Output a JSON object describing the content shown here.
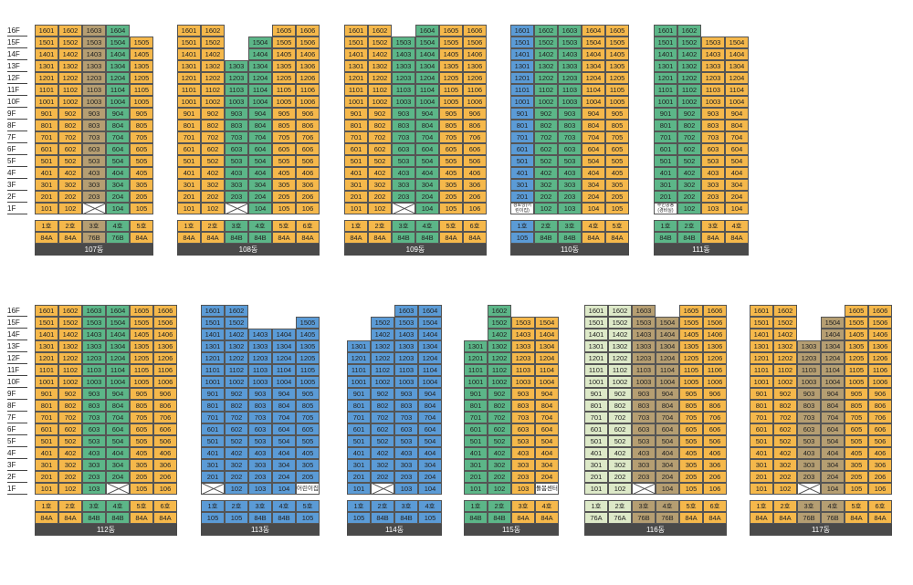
{
  "colors": {
    "orange": "#f5b84b",
    "green": "#5cb688",
    "blue": "#5b9bd6",
    "tan": "#b59e72",
    "lightgreen": "#dde9c8",
    "bar": "#4a4a4a"
  },
  "floor_labels": [
    "16F",
    "15F",
    "14F",
    "13F",
    "12F",
    "11F",
    "10F",
    "9F",
    "8F",
    "7F",
    "6F",
    "5F",
    "4F",
    "3F",
    "2F",
    "1F"
  ],
  "buildings": [
    {
      "name": "107동",
      "ho_labels": [
        "1호",
        "2호",
        "3호",
        "4호",
        "5호"
      ],
      "ho_colors": [
        "orange",
        "orange",
        "tan",
        "green",
        "orange"
      ],
      "types": [
        "84A",
        "84A",
        "76B",
        "76B",
        "84A"
      ],
      "type_colors": [
        "orange",
        "orange",
        "tan",
        "green",
        "orange"
      ],
      "top": [
        16,
        16,
        16,
        16,
        15
      ],
      "first": [
        1,
        1,
        0,
        1,
        1
      ],
      "special": {}
    },
    {
      "name": "108동",
      "ho_labels": [
        "1호",
        "2호",
        "3호",
        "4호",
        "5호",
        "6호"
      ],
      "ho_colors": [
        "orange",
        "orange",
        "green",
        "green",
        "orange",
        "orange"
      ],
      "types": [
        "84A",
        "84A",
        "84B",
        "84B",
        "84A",
        "84A"
      ],
      "type_colors": [
        "orange",
        "orange",
        "green",
        "green",
        "orange",
        "orange"
      ],
      "top": [
        16,
        16,
        13,
        15,
        16,
        16
      ],
      "first": [
        1,
        1,
        0,
        1,
        1,
        1
      ],
      "special": {}
    },
    {
      "name": "109동",
      "ho_labels": [
        "1호",
        "2호",
        "3호",
        "4호",
        "5호",
        "6호"
      ],
      "ho_colors": [
        "orange",
        "orange",
        "green",
        "green",
        "orange",
        "orange"
      ],
      "types": [
        "84A",
        "84A",
        "84B",
        "84B",
        "84A",
        "84A"
      ],
      "type_colors": [
        "orange",
        "orange",
        "green",
        "green",
        "orange",
        "orange"
      ],
      "top": [
        16,
        16,
        15,
        16,
        16,
        16
      ],
      "first": [
        1,
        1,
        0,
        1,
        1,
        1
      ],
      "special": {}
    },
    {
      "name": "110동",
      "ho_labels": [
        "1호",
        "2호",
        "3호",
        "4호",
        "5호"
      ],
      "ho_colors": [
        "blue",
        "green",
        "green",
        "orange",
        "orange"
      ],
      "types": [
        "105",
        "84B",
        "84B",
        "84A",
        "84A"
      ],
      "type_colors": [
        "blue",
        "green",
        "green",
        "orange",
        "orange"
      ],
      "top": [
        16,
        16,
        16,
        16,
        16
      ],
      "first": [
        2,
        1,
        1,
        1,
        1
      ],
      "special": {
        "0": "경로당(어린이집)"
      }
    },
    {
      "name": "111동",
      "ho_labels": [
        "1호",
        "2호",
        "3호",
        "4호"
      ],
      "ho_colors": [
        "green",
        "green",
        "orange",
        "orange"
      ],
      "types": [
        "84B",
        "84B",
        "84A",
        "84A"
      ],
      "type_colors": [
        "green",
        "green",
        "orange",
        "orange"
      ],
      "top": [
        16,
        16,
        15,
        15
      ],
      "first": [
        2,
        1,
        1,
        1
      ],
      "special": {
        "0": "주민공동(경비실)"
      }
    },
    {
      "name": "112동",
      "ho_labels": [
        "1호",
        "2호",
        "3호",
        "4호",
        "5호",
        "6호"
      ],
      "ho_colors": [
        "orange",
        "orange",
        "green",
        "green",
        "orange",
        "orange"
      ],
      "types": [
        "84A",
        "84A",
        "84B",
        "84B",
        "84A",
        "84A"
      ],
      "type_colors": [
        "orange",
        "orange",
        "green",
        "green",
        "orange",
        "orange"
      ],
      "top": [
        16,
        16,
        16,
        16,
        16,
        16
      ],
      "first": [
        1,
        1,
        1,
        0,
        1,
        1
      ],
      "special": {}
    },
    {
      "name": "113동",
      "ho_labels": [
        "1호",
        "2호",
        "3호",
        "4호",
        "5호"
      ],
      "ho_colors": [
        "blue",
        "blue",
        "blue",
        "blue",
        "blue"
      ],
      "types": [
        "105",
        "105",
        "84B",
        "84B",
        "105"
      ],
      "type_colors": [
        "blue",
        "blue",
        "blue",
        "blue",
        "blue"
      ],
      "top": [
        16,
        16,
        14,
        14,
        15
      ],
      "first": [
        0,
        1,
        1,
        1,
        2
      ],
      "special": {
        "4": "어린이집"
      }
    },
    {
      "name": "114동",
      "ho_labels": [
        "1호",
        "2호",
        "3호",
        "4호"
      ],
      "ho_colors": [
        "blue",
        "blue",
        "blue",
        "blue"
      ],
      "types": [
        "105",
        "84B",
        "84B",
        "105"
      ],
      "type_colors": [
        "blue",
        "blue",
        "blue",
        "blue"
      ],
      "top": [
        13,
        15,
        16,
        16
      ],
      "first": [
        1,
        0,
        1,
        1
      ],
      "special": {}
    },
    {
      "name": "115동",
      "ho_labels": [
        "1호",
        "2호",
        "3호",
        "4호"
      ],
      "ho_colors": [
        "green",
        "green",
        "orange",
        "orange"
      ],
      "types": [
        "84B",
        "84B",
        "84A",
        "84A"
      ],
      "type_colors": [
        "green",
        "green",
        "orange",
        "orange"
      ],
      "top": [
        13,
        16,
        15,
        15
      ],
      "first": [
        1,
        1,
        1,
        2
      ],
      "special": {
        "3": "돌봄센터"
      }
    },
    {
      "name": "116동",
      "ho_labels": [
        "1호",
        "2호",
        "3호",
        "4호",
        "5호",
        "6호"
      ],
      "ho_colors": [
        "lightgreen",
        "lightgreen",
        "tan",
        "tan",
        "orange",
        "orange"
      ],
      "types": [
        "76A",
        "76A",
        "76B",
        "76B",
        "84A",
        "84A"
      ],
      "type_colors": [
        "lightgreen",
        "lightgreen",
        "tan",
        "tan",
        "orange",
        "orange"
      ],
      "top": [
        16,
        16,
        16,
        15,
        16,
        16
      ],
      "first": [
        1,
        1,
        0,
        1,
        1,
        1
      ],
      "special": {}
    },
    {
      "name": "117동",
      "ho_labels": [
        "1호",
        "2호",
        "3호",
        "4호",
        "5호",
        "6호"
      ],
      "ho_colors": [
        "orange",
        "orange",
        "tan",
        "tan",
        "orange",
        "orange"
      ],
      "types": [
        "84A",
        "84A",
        "76B",
        "76B",
        "84A",
        "84A"
      ],
      "type_colors": [
        "orange",
        "orange",
        "tan",
        "tan",
        "orange",
        "orange"
      ],
      "top": [
        16,
        16,
        13,
        15,
        16,
        16
      ],
      "first": [
        1,
        1,
        0,
        1,
        1,
        1
      ],
      "special": {}
    }
  ]
}
